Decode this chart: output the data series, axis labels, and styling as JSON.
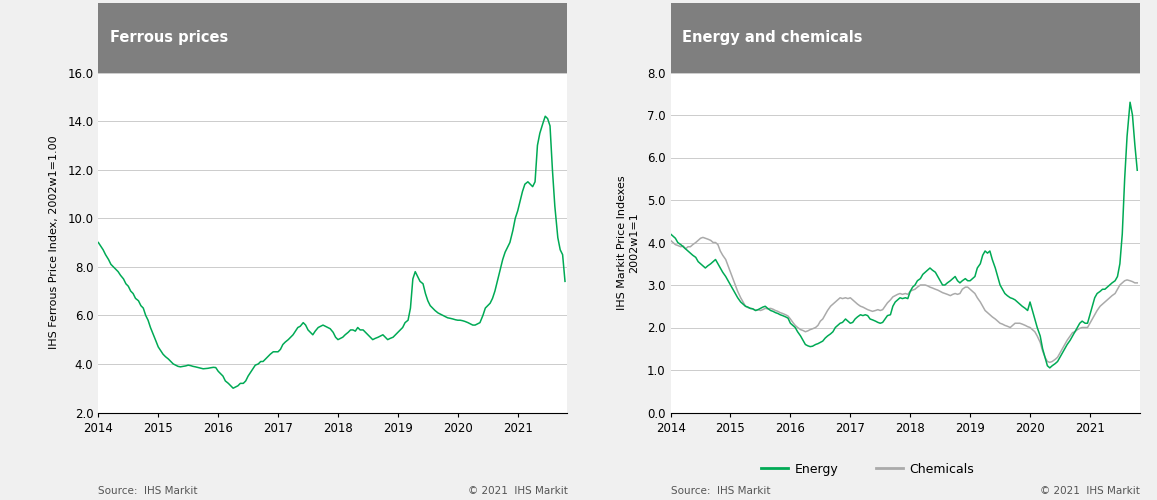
{
  "ferrous_title": "Ferrous prices",
  "ferrous_ylabel": "IHS Ferrous Price Index, 2002w1=1.00",
  "ferrous_ylim": [
    2.0,
    16.0
  ],
  "ferrous_yticks": [
    2.0,
    4.0,
    6.0,
    8.0,
    10.0,
    12.0,
    14.0,
    16.0
  ],
  "ferrous_color": "#00AA55",
  "energy_chem_title": "Energy and chemicals",
  "energy_chem_ylabel": "IHS Markit Price Indexes\n2002w1=1",
  "energy_chem_ylim": [
    0.0,
    8.0
  ],
  "energy_chem_yticks": [
    0.0,
    1.0,
    2.0,
    3.0,
    4.0,
    5.0,
    6.0,
    7.0,
    8.0
  ],
  "energy_color": "#00AA55",
  "chemicals_color": "#AAAAAA",
  "xlim_start": 2014.0,
  "xlim_end": 2021.83,
  "xticks": [
    2014,
    2015,
    2016,
    2017,
    2018,
    2019,
    2020,
    2021
  ],
  "source_text": "Source:  IHS Markit",
  "copyright_text": "© 2021  IHS Markit",
  "header_bg_color": "#7F7F7F",
  "header_text_color": "#FFFFFF",
  "plot_bg_color": "#FFFFFF",
  "outer_bg_color": "#F0F0F0",
  "ferrous_x": [
    2014.0,
    2014.04,
    2014.08,
    2014.12,
    2014.17,
    2014.21,
    2014.25,
    2014.29,
    2014.33,
    2014.37,
    2014.42,
    2014.46,
    2014.5,
    2014.54,
    2014.58,
    2014.62,
    2014.67,
    2014.71,
    2014.75,
    2014.79,
    2014.83,
    2014.87,
    2014.92,
    2014.96,
    2015.0,
    2015.04,
    2015.08,
    2015.12,
    2015.17,
    2015.21,
    2015.25,
    2015.29,
    2015.33,
    2015.37,
    2015.42,
    2015.46,
    2015.5,
    2015.54,
    2015.58,
    2015.62,
    2015.67,
    2015.71,
    2015.75,
    2015.79,
    2015.83,
    2015.87,
    2015.92,
    2015.96,
    2016.0,
    2016.04,
    2016.08,
    2016.12,
    2016.17,
    2016.21,
    2016.25,
    2016.29,
    2016.33,
    2016.37,
    2016.42,
    2016.46,
    2016.5,
    2016.54,
    2016.58,
    2016.62,
    2016.67,
    2016.71,
    2016.75,
    2016.79,
    2016.83,
    2016.87,
    2016.92,
    2016.96,
    2017.0,
    2017.04,
    2017.08,
    2017.12,
    2017.17,
    2017.21,
    2017.25,
    2017.29,
    2017.33,
    2017.37,
    2017.42,
    2017.46,
    2017.5,
    2017.54,
    2017.58,
    2017.62,
    2017.67,
    2017.71,
    2017.75,
    2017.79,
    2017.83,
    2017.87,
    2017.92,
    2017.96,
    2018.0,
    2018.04,
    2018.08,
    2018.12,
    2018.17,
    2018.21,
    2018.25,
    2018.29,
    2018.33,
    2018.37,
    2018.42,
    2018.46,
    2018.5,
    2018.54,
    2018.58,
    2018.62,
    2018.67,
    2018.71,
    2018.75,
    2018.79,
    2018.83,
    2018.87,
    2018.92,
    2018.96,
    2019.0,
    2019.04,
    2019.08,
    2019.12,
    2019.17,
    2019.21,
    2019.25,
    2019.29,
    2019.33,
    2019.37,
    2019.42,
    2019.46,
    2019.5,
    2019.54,
    2019.58,
    2019.62,
    2019.67,
    2019.71,
    2019.75,
    2019.79,
    2019.83,
    2019.87,
    2019.92,
    2019.96,
    2020.0,
    2020.04,
    2020.08,
    2020.12,
    2020.17,
    2020.21,
    2020.25,
    2020.29,
    2020.33,
    2020.37,
    2020.42,
    2020.46,
    2020.5,
    2020.54,
    2020.58,
    2020.62,
    2020.67,
    2020.71,
    2020.75,
    2020.79,
    2020.83,
    2020.87,
    2020.92,
    2020.96,
    2021.0,
    2021.04,
    2021.08,
    2021.12,
    2021.17,
    2021.21,
    2021.25,
    2021.29,
    2021.33,
    2021.37,
    2021.42,
    2021.46,
    2021.5,
    2021.54,
    2021.58,
    2021.62,
    2021.67,
    2021.71,
    2021.75,
    2021.79
  ],
  "ferrous_y": [
    9.0,
    8.85,
    8.7,
    8.5,
    8.3,
    8.1,
    8.0,
    7.9,
    7.8,
    7.65,
    7.5,
    7.3,
    7.2,
    7.0,
    6.9,
    6.7,
    6.6,
    6.4,
    6.3,
    6.0,
    5.8,
    5.5,
    5.2,
    4.95,
    4.7,
    4.55,
    4.4,
    4.3,
    4.2,
    4.1,
    4.0,
    3.95,
    3.9,
    3.88,
    3.9,
    3.92,
    3.95,
    3.93,
    3.9,
    3.88,
    3.85,
    3.83,
    3.8,
    3.81,
    3.82,
    3.84,
    3.86,
    3.85,
    3.7,
    3.6,
    3.5,
    3.3,
    3.2,
    3.1,
    3.0,
    3.05,
    3.1,
    3.2,
    3.2,
    3.3,
    3.5,
    3.65,
    3.8,
    3.95,
    4.0,
    4.1,
    4.1,
    4.2,
    4.3,
    4.4,
    4.5,
    4.5,
    4.5,
    4.6,
    4.8,
    4.9,
    5.0,
    5.1,
    5.2,
    5.35,
    5.5,
    5.55,
    5.7,
    5.6,
    5.4,
    5.3,
    5.2,
    5.35,
    5.5,
    5.55,
    5.6,
    5.55,
    5.5,
    5.45,
    5.3,
    5.1,
    5.0,
    5.05,
    5.1,
    5.2,
    5.3,
    5.4,
    5.4,
    5.35,
    5.5,
    5.4,
    5.4,
    5.3,
    5.2,
    5.1,
    5.0,
    5.05,
    5.1,
    5.15,
    5.2,
    5.1,
    5.0,
    5.05,
    5.1,
    5.2,
    5.3,
    5.4,
    5.5,
    5.7,
    5.8,
    6.3,
    7.5,
    7.8,
    7.6,
    7.4,
    7.3,
    6.9,
    6.6,
    6.4,
    6.3,
    6.2,
    6.1,
    6.05,
    6.0,
    5.95,
    5.9,
    5.88,
    5.85,
    5.82,
    5.8,
    5.8,
    5.78,
    5.75,
    5.7,
    5.65,
    5.6,
    5.6,
    5.65,
    5.7,
    6.0,
    6.3,
    6.4,
    6.5,
    6.7,
    7.0,
    7.5,
    7.9,
    8.3,
    8.6,
    8.8,
    9.0,
    9.5,
    10.0,
    10.3,
    10.7,
    11.1,
    11.4,
    11.5,
    11.4,
    11.3,
    11.5,
    13.0,
    13.5,
    13.9,
    14.2,
    14.1,
    13.8,
    12.0,
    10.5,
    9.2,
    8.7,
    8.5,
    7.4
  ],
  "energy_x": [
    2014.0,
    2014.04,
    2014.08,
    2014.12,
    2014.17,
    2014.21,
    2014.25,
    2014.29,
    2014.33,
    2014.37,
    2014.42,
    2014.46,
    2014.5,
    2014.54,
    2014.58,
    2014.62,
    2014.67,
    2014.71,
    2014.75,
    2014.79,
    2014.83,
    2014.87,
    2014.92,
    2014.96,
    2015.0,
    2015.04,
    2015.08,
    2015.12,
    2015.17,
    2015.21,
    2015.25,
    2015.29,
    2015.33,
    2015.37,
    2015.42,
    2015.46,
    2015.5,
    2015.54,
    2015.58,
    2015.62,
    2015.67,
    2015.71,
    2015.75,
    2015.79,
    2015.83,
    2015.87,
    2015.92,
    2015.96,
    2016.0,
    2016.04,
    2016.08,
    2016.12,
    2016.17,
    2016.21,
    2016.25,
    2016.29,
    2016.33,
    2016.37,
    2016.42,
    2016.46,
    2016.5,
    2016.54,
    2016.58,
    2016.62,
    2016.67,
    2016.71,
    2016.75,
    2016.79,
    2016.83,
    2016.87,
    2016.92,
    2016.96,
    2017.0,
    2017.04,
    2017.08,
    2017.12,
    2017.17,
    2017.21,
    2017.25,
    2017.29,
    2017.33,
    2017.37,
    2017.42,
    2017.46,
    2017.5,
    2017.54,
    2017.58,
    2017.62,
    2017.67,
    2017.71,
    2017.75,
    2017.79,
    2017.83,
    2017.87,
    2017.92,
    2017.96,
    2018.0,
    2018.04,
    2018.08,
    2018.12,
    2018.17,
    2018.21,
    2018.25,
    2018.29,
    2018.33,
    2018.37,
    2018.42,
    2018.46,
    2018.5,
    2018.54,
    2018.58,
    2018.62,
    2018.67,
    2018.71,
    2018.75,
    2018.79,
    2018.83,
    2018.87,
    2018.92,
    2018.96,
    2019.0,
    2019.04,
    2019.08,
    2019.12,
    2019.17,
    2019.21,
    2019.25,
    2019.29,
    2019.33,
    2019.37,
    2019.42,
    2019.46,
    2019.5,
    2019.54,
    2019.58,
    2019.62,
    2019.67,
    2019.71,
    2019.75,
    2019.79,
    2019.83,
    2019.87,
    2019.92,
    2019.96,
    2020.0,
    2020.04,
    2020.08,
    2020.12,
    2020.17,
    2020.21,
    2020.25,
    2020.29,
    2020.33,
    2020.37,
    2020.42,
    2020.46,
    2020.5,
    2020.54,
    2020.58,
    2020.62,
    2020.67,
    2020.71,
    2020.75,
    2020.79,
    2020.83,
    2020.87,
    2020.92,
    2020.96,
    2021.0,
    2021.04,
    2021.08,
    2021.12,
    2021.17,
    2021.21,
    2021.25,
    2021.29,
    2021.33,
    2021.37,
    2021.42,
    2021.46,
    2021.5,
    2021.54,
    2021.58,
    2021.62,
    2021.67,
    2021.71,
    2021.75,
    2021.79
  ],
  "energy_y": [
    4.2,
    4.15,
    4.1,
    4.0,
    3.95,
    3.9,
    3.85,
    3.8,
    3.75,
    3.7,
    3.65,
    3.55,
    3.5,
    3.45,
    3.4,
    3.45,
    3.5,
    3.55,
    3.6,
    3.5,
    3.4,
    3.3,
    3.2,
    3.1,
    3.0,
    2.9,
    2.8,
    2.7,
    2.6,
    2.55,
    2.5,
    2.48,
    2.45,
    2.44,
    2.4,
    2.42,
    2.45,
    2.48,
    2.5,
    2.45,
    2.4,
    2.38,
    2.35,
    2.33,
    2.3,
    2.28,
    2.25,
    2.22,
    2.1,
    2.05,
    2.0,
    1.9,
    1.8,
    1.7,
    1.6,
    1.57,
    1.55,
    1.56,
    1.6,
    1.62,
    1.65,
    1.68,
    1.75,
    1.8,
    1.85,
    1.9,
    2.0,
    2.05,
    2.1,
    2.12,
    2.2,
    2.15,
    2.1,
    2.12,
    2.2,
    2.25,
    2.3,
    2.28,
    2.3,
    2.28,
    2.2,
    2.18,
    2.15,
    2.12,
    2.1,
    2.12,
    2.2,
    2.28,
    2.3,
    2.5,
    2.6,
    2.65,
    2.7,
    2.68,
    2.7,
    2.68,
    2.85,
    2.95,
    3.0,
    3.1,
    3.15,
    3.25,
    3.3,
    3.35,
    3.4,
    3.35,
    3.3,
    3.2,
    3.1,
    3.0,
    3.0,
    3.05,
    3.1,
    3.15,
    3.2,
    3.1,
    3.05,
    3.1,
    3.15,
    3.1,
    3.1,
    3.15,
    3.2,
    3.4,
    3.5,
    3.7,
    3.8,
    3.75,
    3.8,
    3.6,
    3.4,
    3.2,
    3.0,
    2.9,
    2.8,
    2.75,
    2.7,
    2.68,
    2.65,
    2.6,
    2.55,
    2.5,
    2.45,
    2.4,
    2.6,
    2.4,
    2.2,
    2.0,
    1.8,
    1.5,
    1.3,
    1.1,
    1.05,
    1.1,
    1.15,
    1.2,
    1.3,
    1.4,
    1.5,
    1.6,
    1.7,
    1.8,
    1.9,
    2.0,
    2.1,
    2.15,
    2.1,
    2.1,
    2.3,
    2.5,
    2.7,
    2.8,
    2.85,
    2.9,
    2.9,
    2.95,
    3.0,
    3.05,
    3.1,
    3.2,
    3.5,
    4.2,
    5.5,
    6.5,
    7.3,
    7.0,
    6.3,
    5.7
  ],
  "chemicals_x": [
    2014.0,
    2014.04,
    2014.08,
    2014.12,
    2014.17,
    2014.21,
    2014.25,
    2014.29,
    2014.33,
    2014.37,
    2014.42,
    2014.46,
    2014.5,
    2014.54,
    2014.58,
    2014.62,
    2014.67,
    2014.71,
    2014.75,
    2014.79,
    2014.83,
    2014.87,
    2014.92,
    2014.96,
    2015.0,
    2015.04,
    2015.08,
    2015.12,
    2015.17,
    2015.21,
    2015.25,
    2015.29,
    2015.33,
    2015.37,
    2015.42,
    2015.46,
    2015.5,
    2015.54,
    2015.58,
    2015.62,
    2015.67,
    2015.71,
    2015.75,
    2015.79,
    2015.83,
    2015.87,
    2015.92,
    2015.96,
    2016.0,
    2016.04,
    2016.08,
    2016.12,
    2016.17,
    2016.21,
    2016.25,
    2016.29,
    2016.33,
    2016.37,
    2016.42,
    2016.46,
    2016.5,
    2016.54,
    2016.58,
    2016.62,
    2016.67,
    2016.71,
    2016.75,
    2016.79,
    2016.83,
    2016.87,
    2016.92,
    2016.96,
    2017.0,
    2017.04,
    2017.08,
    2017.12,
    2017.17,
    2017.21,
    2017.25,
    2017.29,
    2017.33,
    2017.37,
    2017.42,
    2017.46,
    2017.5,
    2017.54,
    2017.58,
    2017.62,
    2017.67,
    2017.71,
    2017.75,
    2017.79,
    2017.83,
    2017.87,
    2017.92,
    2017.96,
    2018.0,
    2018.04,
    2018.08,
    2018.12,
    2018.17,
    2018.21,
    2018.25,
    2018.29,
    2018.33,
    2018.37,
    2018.42,
    2018.46,
    2018.5,
    2018.54,
    2018.58,
    2018.62,
    2018.67,
    2018.71,
    2018.75,
    2018.79,
    2018.83,
    2018.87,
    2018.92,
    2018.96,
    2019.0,
    2019.04,
    2019.08,
    2019.12,
    2019.17,
    2019.21,
    2019.25,
    2019.29,
    2019.33,
    2019.37,
    2019.42,
    2019.46,
    2019.5,
    2019.54,
    2019.58,
    2019.62,
    2019.67,
    2019.71,
    2019.75,
    2019.79,
    2019.83,
    2019.87,
    2019.92,
    2019.96,
    2020.0,
    2020.04,
    2020.08,
    2020.12,
    2020.17,
    2020.21,
    2020.25,
    2020.29,
    2020.33,
    2020.37,
    2020.42,
    2020.46,
    2020.5,
    2020.54,
    2020.58,
    2020.62,
    2020.67,
    2020.71,
    2020.75,
    2020.79,
    2020.83,
    2020.87,
    2020.92,
    2020.96,
    2021.0,
    2021.04,
    2021.08,
    2021.12,
    2021.17,
    2021.21,
    2021.25,
    2021.29,
    2021.33,
    2021.37,
    2021.42,
    2021.46,
    2021.5,
    2021.54,
    2021.58,
    2021.62,
    2021.67,
    2021.71,
    2021.75,
    2021.79
  ],
  "chemicals_y": [
    4.05,
    4.0,
    3.95,
    3.93,
    3.9,
    3.92,
    3.85,
    3.9,
    3.9,
    3.95,
    4.0,
    4.05,
    4.1,
    4.12,
    4.1,
    4.08,
    4.05,
    4.0,
    4.0,
    3.95,
    3.8,
    3.7,
    3.6,
    3.45,
    3.3,
    3.15,
    3.0,
    2.85,
    2.7,
    2.6,
    2.5,
    2.47,
    2.45,
    2.44,
    2.4,
    2.42,
    2.4,
    2.42,
    2.45,
    2.44,
    2.45,
    2.43,
    2.4,
    2.38,
    2.35,
    2.33,
    2.3,
    2.27,
    2.2,
    2.12,
    2.05,
    2.0,
    1.95,
    1.93,
    1.9,
    1.92,
    1.95,
    1.97,
    2.0,
    2.05,
    2.15,
    2.2,
    2.3,
    2.4,
    2.5,
    2.55,
    2.6,
    2.65,
    2.7,
    2.68,
    2.7,
    2.68,
    2.7,
    2.65,
    2.6,
    2.55,
    2.5,
    2.48,
    2.45,
    2.42,
    2.4,
    2.38,
    2.4,
    2.42,
    2.4,
    2.42,
    2.5,
    2.58,
    2.65,
    2.72,
    2.75,
    2.78,
    2.8,
    2.78,
    2.8,
    2.78,
    2.85,
    2.88,
    2.9,
    2.95,
    3.0,
    3.0,
    3.0,
    2.98,
    2.95,
    2.93,
    2.9,
    2.88,
    2.85,
    2.82,
    2.8,
    2.78,
    2.75,
    2.78,
    2.8,
    2.78,
    2.8,
    2.9,
    2.95,
    2.95,
    2.9,
    2.85,
    2.8,
    2.7,
    2.6,
    2.5,
    2.4,
    2.35,
    2.3,
    2.25,
    2.2,
    2.15,
    2.1,
    2.08,
    2.05,
    2.03,
    2.0,
    2.05,
    2.1,
    2.1,
    2.1,
    2.08,
    2.05,
    2.02,
    2.0,
    1.95,
    1.9,
    1.8,
    1.65,
    1.45,
    1.3,
    1.2,
    1.18,
    1.2,
    1.25,
    1.3,
    1.4,
    1.5,
    1.6,
    1.7,
    1.8,
    1.88,
    1.9,
    1.95,
    1.98,
    2.0,
    2.0,
    2.0,
    2.1,
    2.2,
    2.3,
    2.4,
    2.5,
    2.55,
    2.6,
    2.65,
    2.7,
    2.75,
    2.8,
    2.9,
    3.0,
    3.05,
    3.1,
    3.12,
    3.1,
    3.08,
    3.05,
    3.05
  ]
}
